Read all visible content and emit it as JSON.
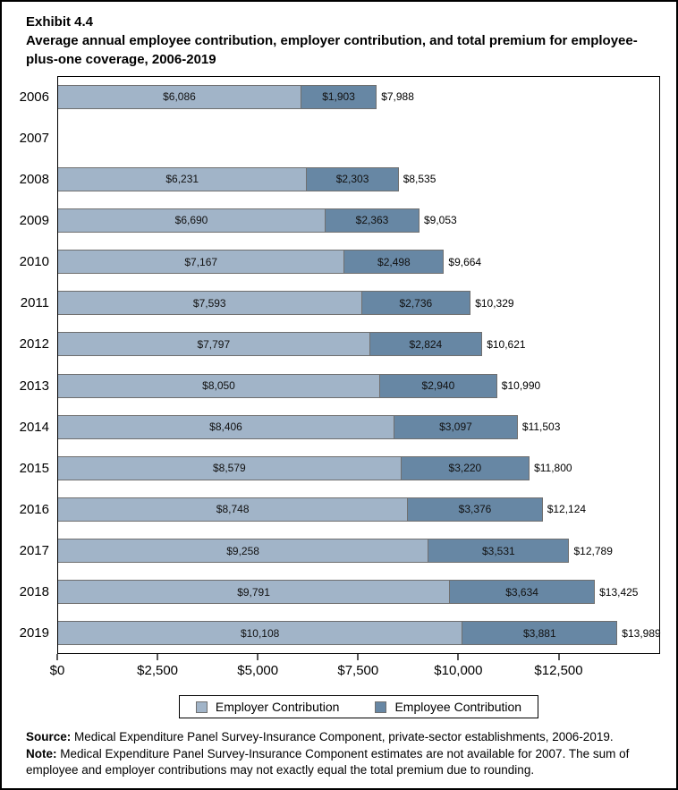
{
  "header": {
    "exhibit_label": "Exhibit 4.4",
    "title": "Average annual employee contribution, employer contribution, and total premium for employee-plus-one coverage, 2006-2019"
  },
  "chart_data": {
    "type": "bar",
    "orientation": "horizontal",
    "stacked": true,
    "grid": false,
    "legend_position": "bottom",
    "categories": [
      "2006",
      "2007",
      "2008",
      "2009",
      "2010",
      "2011",
      "2012",
      "2013",
      "2014",
      "2015",
      "2016",
      "2017",
      "2018",
      "2019"
    ],
    "series": [
      {
        "name": "Employer Contribution",
        "color": "#a1b4c8",
        "values": [
          6086,
          null,
          6231,
          6690,
          7167,
          7593,
          7797,
          8050,
          8406,
          8579,
          8748,
          9258,
          9791,
          10108
        ],
        "labels": [
          "$6,086",
          "",
          "$6,231",
          "$6,690",
          "$7,167",
          "$7,593",
          "$7,797",
          "$8,050",
          "$8,406",
          "$8,579",
          "$8,748",
          "$9,258",
          "$9,791",
          "$10,108"
        ]
      },
      {
        "name": "Employee Contribution",
        "color": "#6787a4",
        "values": [
          1903,
          null,
          2303,
          2363,
          2498,
          2736,
          2824,
          2940,
          3097,
          3220,
          3376,
          3531,
          3634,
          3881
        ],
        "labels": [
          "$1,903",
          "",
          "$2,303",
          "$2,363",
          "$2,498",
          "$2,736",
          "$2,824",
          "$2,940",
          "$3,097",
          "$3,220",
          "$3,376",
          "$3,531",
          "$3,634",
          "$3,881"
        ]
      }
    ],
    "totals": [
      7988,
      null,
      8535,
      9053,
      9664,
      10329,
      10621,
      10990,
      11503,
      11800,
      12124,
      12789,
      13425,
      13989
    ],
    "total_labels": [
      "$7,988",
      "",
      "$8,535",
      "$9,053",
      "$9,664",
      "$10,329",
      "$10,621",
      "$10,990",
      "$11,503",
      "$11,800",
      "$12,124",
      "$12,789",
      "$13,425",
      "$13,989"
    ],
    "x_axis": {
      "max": 15030,
      "ticks": [
        0,
        2500,
        5000,
        7500,
        10000,
        12500
      ],
      "tick_labels": [
        "$0",
        "$2,500",
        "$5,000",
        "$7,500",
        "$10,000",
        "$12,500"
      ]
    },
    "xlabel": "",
    "ylabel": ""
  },
  "legend": {
    "entries": [
      "Employer Contribution",
      "Employee Contribution"
    ]
  },
  "footnotes": {
    "source_label": "Source:",
    "source_text": " Medical Expenditure Panel Survey-Insurance Component, private-sector establishments, 2006-2019.",
    "note_label": "Note:",
    "note_text": " Medical Expenditure Panel Survey-Insurance Component estimates are not available for 2007. The sum of employee and employer contributions may not exactly equal the total premium due to rounding."
  }
}
